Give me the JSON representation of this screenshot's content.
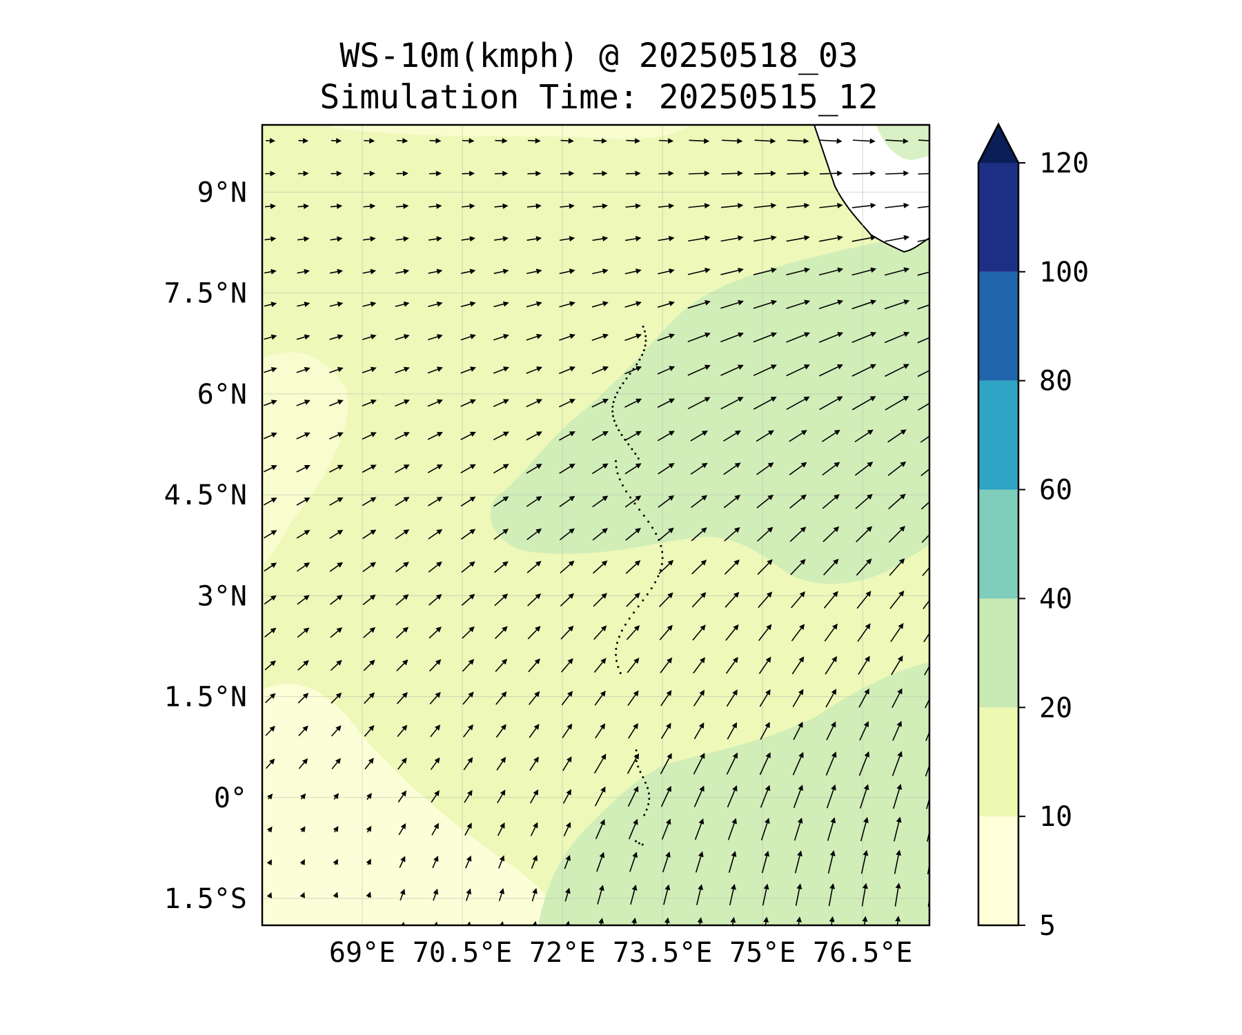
{
  "title": "WS-10m(kmph) @ 20250518_03",
  "subtitle": "Simulation Time: 20250515_12",
  "map": {
    "lon_range": [
      67.5,
      77.5
    ],
    "lat_range": [
      -1.9,
      10.0
    ],
    "lon_ticks": [
      {
        "value": 69,
        "label": "69°E"
      },
      {
        "value": 70.5,
        "label": "70.5°E"
      },
      {
        "value": 72,
        "label": "72°E"
      },
      {
        "value": 73.5,
        "label": "73.5°E"
      },
      {
        "value": 75,
        "label": "75°E"
      },
      {
        "value": 76.5,
        "label": "76.5°E"
      }
    ],
    "lat_ticks": [
      {
        "value": 9,
        "label": "9°N"
      },
      {
        "value": 7.5,
        "label": "7.5°N"
      },
      {
        "value": 6,
        "label": "6°N"
      },
      {
        "value": 4.5,
        "label": "4.5°N"
      },
      {
        "value": 3,
        "label": "3°N"
      },
      {
        "value": 1.5,
        "label": "1.5°N"
      },
      {
        "value": 0,
        "label": "0°"
      },
      {
        "value": -1.5,
        "label": "1.5°S"
      }
    ],
    "gridlines": true,
    "background_color": "#edf8b9",
    "vector_field": "wind arrows, westerly in north turning south-easterly in south",
    "land": "India / Sri Lanka coast at top-right, Maldives atolls dotted along 73°E"
  },
  "colorbar": {
    "levels": [
      {
        "label": "5",
        "value": 5
      },
      {
        "label": "10",
        "value": 10
      },
      {
        "label": "20",
        "value": 20
      },
      {
        "label": "40",
        "value": 40
      },
      {
        "label": "60",
        "value": 60
      },
      {
        "label": "80",
        "value": 80
      },
      {
        "label": "100",
        "value": 100
      },
      {
        "label": "120",
        "value": 120
      }
    ],
    "colors": [
      "#ffffd9",
      "#edf8b1",
      "#c7e9b4",
      "#7fcdbb",
      "#2fa4c4",
      "#2166ac",
      "#1d2f84"
    ],
    "extend_color": "#0b1e55",
    "extend": "max"
  }
}
